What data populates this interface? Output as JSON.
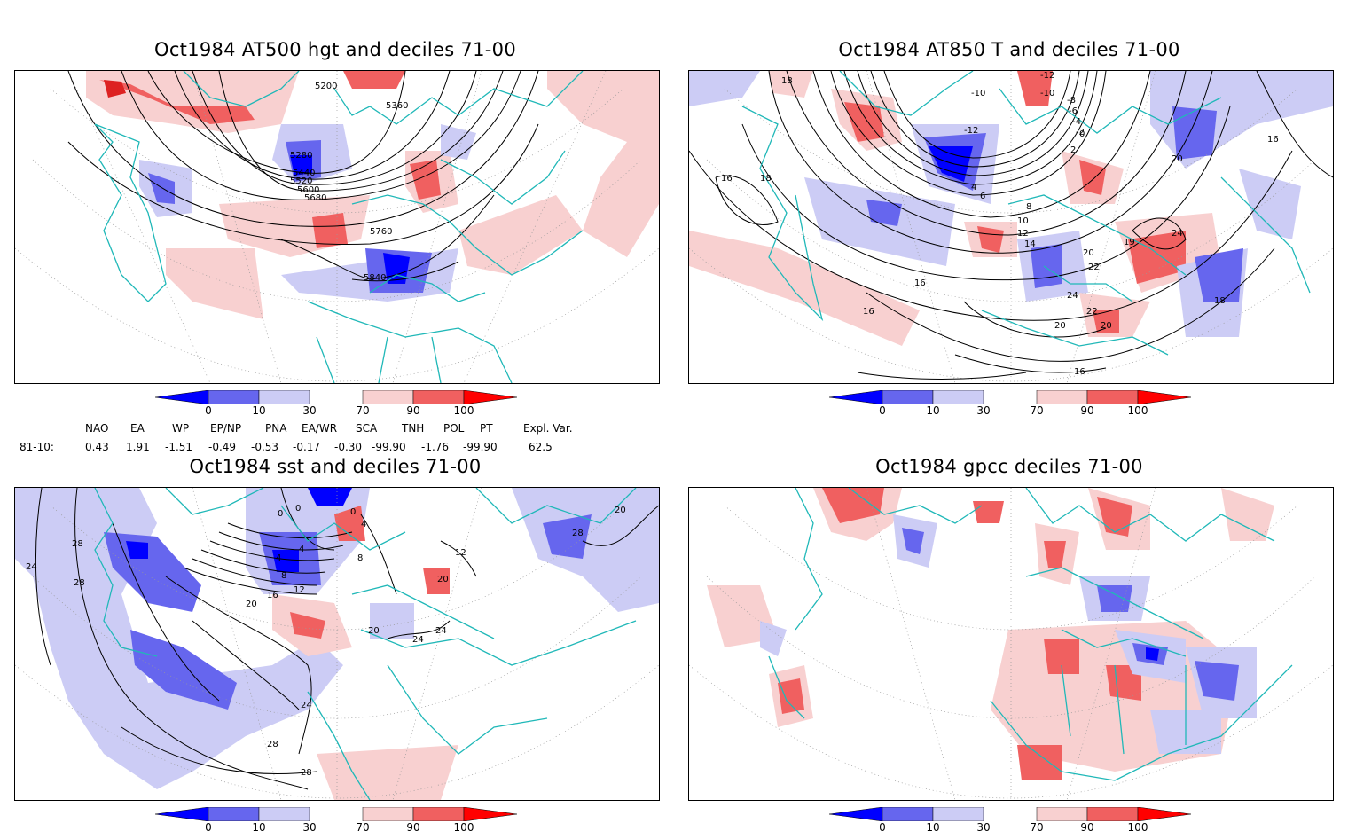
{
  "panels": [
    {
      "title": "Oct1984 AT500 hgt and deciles 71-00",
      "contour_labels": [
        "5200",
        "5360",
        "5280",
        "5440",
        "5520",
        "5600",
        "5680",
        "5760",
        "5840"
      ]
    },
    {
      "title": "Oct1984 AT850 T and deciles 71-00",
      "contour_labels": [
        "18",
        "-12",
        "-10",
        "-8",
        "-6",
        "-4",
        "-2",
        "0",
        "-10",
        "-12",
        "2",
        "4",
        "6",
        "8",
        "10",
        "12",
        "14",
        "16",
        "16",
        "16",
        "16",
        "18",
        "18",
        "19",
        "20",
        "20",
        "20",
        "22",
        "22",
        "24",
        "24",
        "20",
        "16"
      ]
    },
    {
      "title": "Oct1984 sst and deciles 71-00",
      "contour_labels": [
        "24",
        "28",
        "28",
        "0",
        "0",
        "0",
        "4",
        "4",
        "4",
        "8",
        "8",
        "12",
        "16",
        "20",
        "20",
        "20",
        "24",
        "24",
        "24",
        "28",
        "28",
        "28",
        "20",
        "12"
      ]
    },
    {
      "title": "Oct1984 gpcc deciles 71-00",
      "contour_labels": []
    }
  ],
  "colorbar": {
    "tick_labels": [
      "0",
      "10",
      "30",
      "70",
      "90",
      "100"
    ],
    "colors": [
      "#0000ff",
      "#6666ee",
      "#ccccf5",
      "#ffffff",
      "#f8d0d0",
      "#f06060",
      "#ff0000"
    ]
  },
  "indices": {
    "headers": [
      "NAO",
      "EA",
      "WP",
      "EP/NP",
      "PNA",
      "EA/WR",
      "SCA",
      "TNH",
      "POL",
      "PT",
      "Expl. Var."
    ],
    "row_label": "81-10:",
    "values": [
      "0.43",
      "1.91",
      "-1.51",
      "-0.49",
      "-0.53",
      "-0.17",
      "-0.30",
      "-99.90",
      "-1.76",
      "-99.90",
      "62.5"
    ]
  },
  "colors": {
    "coastline": "#20b8b8",
    "contour": "#000000",
    "grid": "#999999"
  }
}
